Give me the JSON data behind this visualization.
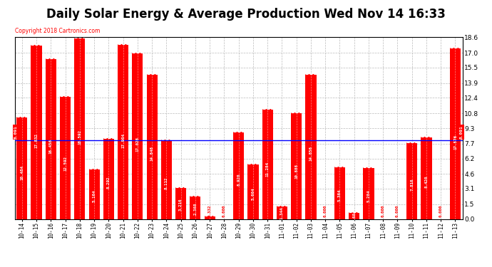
{
  "title": "Daily Solar Energy & Average Production Wed Nov 14 16:33",
  "copyright": "Copyright 2018 Cartronics.com",
  "categories": [
    "10-14",
    "10-15",
    "10-16",
    "10-17",
    "10-18",
    "10-19",
    "10-20",
    "10-21",
    "10-22",
    "10-23",
    "10-24",
    "10-25",
    "10-26",
    "10-27",
    "10-28",
    "10-29",
    "10-30",
    "10-31",
    "11-01",
    "11-02",
    "11-03",
    "11-04",
    "11-05",
    "11-06",
    "11-07",
    "11-08",
    "11-09",
    "11-10",
    "11-11",
    "11-12",
    "11-13"
  ],
  "values": [
    10.484,
    17.832,
    16.456,
    12.592,
    18.592,
    5.164,
    8.292,
    17.904,
    17.028,
    14.848,
    8.112,
    3.216,
    2.368,
    0.332,
    0.0,
    8.92,
    5.664,
    11.284,
    1.344,
    10.888,
    14.856,
    0.0,
    5.364,
    0.684,
    5.284,
    0.0,
    0.0,
    7.816,
    8.42,
    0.0,
    17.576
  ],
  "average": 8.091,
  "bar_color": "#FF0000",
  "average_line_color": "#0000FF",
  "background_color": "#FFFFFF",
  "grid_color": "#AAAAAA",
  "title_fontsize": 12,
  "ylabel_right": [
    "18.6",
    "17.0",
    "15.5",
    "13.9",
    "12.4",
    "10.8",
    "9.3",
    "7.7",
    "6.2",
    "4.6",
    "3.1",
    "1.5",
    "0.0"
  ],
  "ylabel_right_vals": [
    18.6,
    17.0,
    15.5,
    13.9,
    12.4,
    10.8,
    9.3,
    7.7,
    6.2,
    4.6,
    3.1,
    1.5,
    0.0
  ],
  "ylim": [
    0.0,
    18.6
  ],
  "legend_average_color": "#0000BB",
  "legend_daily_color": "#FF0000",
  "avg_text": "8.091"
}
